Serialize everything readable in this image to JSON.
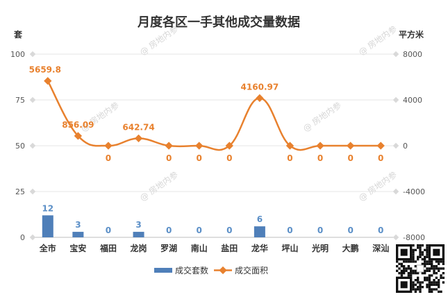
{
  "chart_data": {
    "type": "bar+line",
    "title": "月度各区一手其他成交量数据",
    "categories": [
      "全市",
      "宝安",
      "福田",
      "龙岗",
      "罗湖",
      "南山",
      "盐田",
      "龙华",
      "坪山",
      "光明",
      "大鹏",
      "深汕"
    ],
    "series": [
      {
        "name": "成交套数",
        "type": "bar",
        "axis": "left",
        "values": [
          12,
          3,
          0,
          3,
          0,
          0,
          0,
          6,
          0,
          0,
          0,
          0
        ],
        "labels": [
          "12",
          "3",
          "0",
          "3",
          "0",
          "0",
          "0",
          "6",
          "0",
          "0",
          "0",
          "0"
        ],
        "color": "#4f7fb9"
      },
      {
        "name": "成交面积",
        "type": "line",
        "axis": "right",
        "values": [
          5659.8,
          856.09,
          0,
          642.74,
          0,
          0,
          0,
          4160.97,
          0,
          0,
          0,
          0
        ],
        "labels": [
          "5659.8",
          "856.09",
          "0",
          "642.74",
          "0",
          "0",
          "0",
          "4160.97",
          "0",
          "0",
          "0",
          "0"
        ],
        "color": "#e8812e"
      }
    ],
    "left_axis": {
      "unit": "套",
      "ylim": [
        0,
        100
      ],
      "ticks": [
        "100",
        "75",
        "50",
        "25",
        "0"
      ],
      "tick_values": [
        100,
        75,
        50,
        25,
        0
      ]
    },
    "right_axis": {
      "unit": "平方米",
      "ylim": [
        -8000,
        8000
      ],
      "ticks": [
        "8000",
        "4000",
        "0",
        "-4000",
        "-8000"
      ],
      "tick_values": [
        8000,
        4000,
        0,
        -4000,
        -8000
      ]
    },
    "grid": true,
    "legend": "bottom",
    "watermark": "@ 房地内参"
  }
}
